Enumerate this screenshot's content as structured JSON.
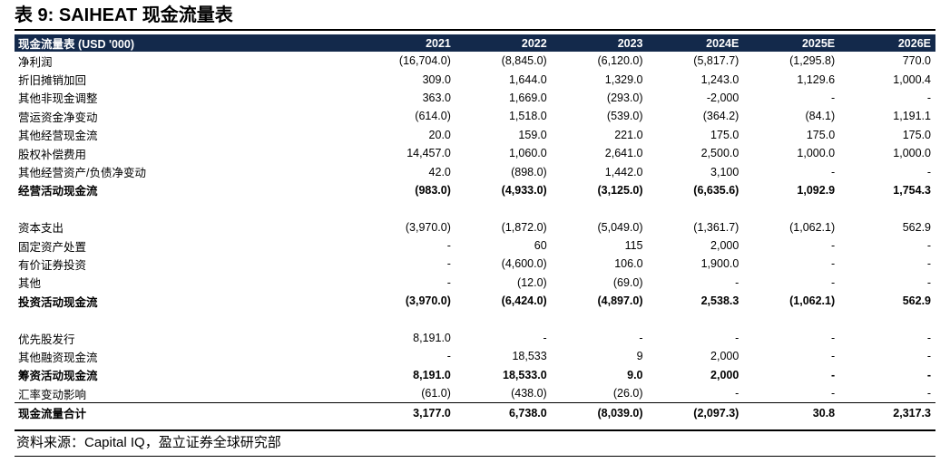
{
  "title": "表 9: SAIHEAT 现金流量表",
  "table": {
    "header": {
      "label": "现金流量表 (USD '000)",
      "years": [
        "2021",
        "2022",
        "2023",
        "2024E",
        "2025E",
        "2026E"
      ]
    },
    "sections": [
      {
        "rows": [
          {
            "label": "净利润",
            "values": [
              "(16,704.0)",
              "(8,845.0)",
              "(6,120.0)",
              "(5,817.7)",
              "(1,295.8)",
              "770.0"
            ]
          },
          {
            "label": "折旧摊销加回",
            "values": [
              "309.0",
              "1,644.0",
              "1,329.0",
              "1,243.0",
              "1,129.6",
              "1,000.4"
            ]
          },
          {
            "label": "其他非现金调整",
            "values": [
              "363.0",
              "1,669.0",
              "(293.0)",
              "-2,000",
              "-",
              "-"
            ]
          },
          {
            "label": "营运资金净变动",
            "values": [
              "(614.0)",
              "1,518.0",
              "(539.0)",
              "(364.2)",
              "(84.1)",
              "1,191.1"
            ]
          },
          {
            "label": "其他经营现金流",
            "values": [
              "20.0",
              "159.0",
              "221.0",
              "175.0",
              "175.0",
              "175.0"
            ]
          },
          {
            "label": "股权补偿费用",
            "values": [
              "14,457.0",
              "1,060.0",
              "2,641.0",
              "2,500.0",
              "1,000.0",
              "1,000.0"
            ]
          },
          {
            "label": "其他经营资产/负债净变动",
            "values": [
              "42.0",
              "(898.0)",
              "1,442.0",
              "3,100",
              "-",
              "-"
            ]
          }
        ],
        "total": {
          "label": "经营活动现金流",
          "values": [
            "(983.0)",
            "(4,933.0)",
            "(3,125.0)",
            "(6,635.6)",
            "1,092.9",
            "1,754.3"
          ]
        }
      },
      {
        "rows": [
          {
            "label": "资本支出",
            "values": [
              "(3,970.0)",
              "(1,872.0)",
              "(5,049.0)",
              "(1,361.7)",
              "(1,062.1)",
              "562.9"
            ]
          },
          {
            "label": "固定资产处置",
            "values": [
              "-",
              "60",
              "115",
              "2,000",
              "-",
              "-"
            ]
          },
          {
            "label": "有价证券投资",
            "values": [
              "-",
              "(4,600.0)",
              "106.0",
              "1,900.0",
              "-",
              "-"
            ]
          },
          {
            "label": "其他",
            "values": [
              "-",
              "(12.0)",
              "(69.0)",
              "-",
              "-",
              "-"
            ]
          }
        ],
        "total": {
          "label": "投资活动现金流",
          "values": [
            "(3,970.0)",
            "(6,424.0)",
            "(4,897.0)",
            "2,538.3",
            "(1,062.1)",
            "562.9"
          ]
        }
      },
      {
        "rows": [
          {
            "label": "优先股发行",
            "values": [
              "8,191.0",
              "-",
              "-",
              "-",
              "-",
              "-"
            ]
          },
          {
            "label": "其他融资现金流",
            "values": [
              "-",
              "18,533",
              "9",
              "2,000",
              "-",
              "-"
            ]
          }
        ],
        "total": {
          "label": "筹资活动现金流",
          "values": [
            "8,191.0",
            "18,533.0",
            "9.0",
            "2,000",
            "-",
            "-"
          ]
        },
        "extra": {
          "label": "汇率变动影响",
          "values": [
            "(61.0)",
            "(438.0)",
            "(26.0)",
            "-",
            "-",
            "-"
          ]
        }
      }
    ],
    "grand_total": {
      "label": "现金流量合计",
      "values": [
        "3,177.0",
        "6,738.0",
        "(8,039.0)",
        "(2,097.3)",
        "30.8",
        "2,317.3"
      ]
    }
  },
  "source": "资料来源：Capital IQ，盈立证券全球研究部"
}
